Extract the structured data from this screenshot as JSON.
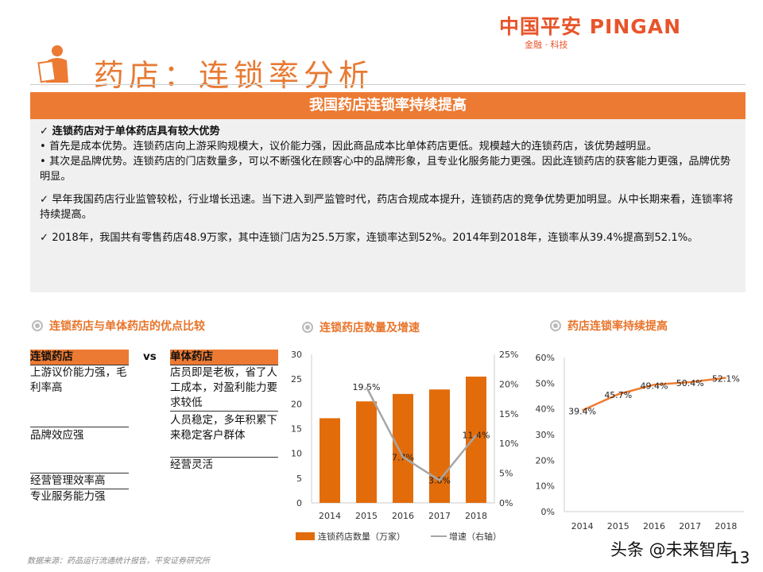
{
  "header": {
    "logo": "中国平安 PINGAN",
    "logo_sub": "金融 · 科技",
    "title": "药店：连锁率分析",
    "banner": "我国药店连锁率持续提高",
    "accent": "#ec7a33"
  },
  "text": {
    "p1_head": "✓ 连锁药店对于单体药店具有较大优势",
    "p1_b1": "• 首先是成本优势。连锁药店向上游采购规模大，议价能力强，因此商品成本比单体药店更低。规模越大的连锁药店，该优势越明显。",
    "p1_b2": "• 其次是品牌优势。连锁药店的门店数量多，可以不断强化在顾客心中的品牌形象，且专业化服务能力更强。因此连锁药店的获客能力更强，品牌优势明显。",
    "p2": "✓ 早年我国药店行业监管较松，行业增长迅速。当下进入到严监管时代，药店合规成本提升，连锁药店的竞争优势更加明显。从中长期来看，连锁率将持续提高。",
    "p3": "✓ 2018年，我国共有零售药店48.9万家，其中连锁门店为25.5万家，连锁率达到52%。2014年到2018年，连锁率从39.4%提高到52.1%。"
  },
  "compare": {
    "title": "连锁药店与单体药店的优点比较",
    "left_head": "连锁药店",
    "vs": "vs",
    "right_head": "单体药店",
    "left": [
      "上游议价能力强，毛利率高",
      "品牌效应强",
      "经营管理效率高",
      "专业服务能力强"
    ],
    "right": [
      "店员即是老板，省了人工成本，对盈利能力要求较低",
      "人员稳定，多年积累下来稳定客户群体",
      "经营灵活"
    ]
  },
  "chart_data": [
    {
      "type": "bar",
      "title": "连锁药店数量及增速",
      "categories": [
        "2014",
        "2015",
        "2016",
        "2017",
        "2018"
      ],
      "series": [
        {
          "name": "连锁药店数量（万家）",
          "type": "bar",
          "values": [
            17.1,
            20.5,
            22.0,
            22.9,
            25.5
          ],
          "color": "#e36c0a"
        },
        {
          "name": "增速（右轴）",
          "type": "line",
          "values": [
            null,
            19.5,
            7.7,
            3.8,
            11.4
          ],
          "labels": [
            "",
            "19.5%",
            "7.7%",
            "3.8%",
            "11.4%"
          ],
          "color": "#a6a6a6"
        }
      ],
      "ylim": [
        0,
        30
      ],
      "yticks": [
        "0",
        "5",
        "10",
        "15",
        "20",
        "25",
        "30"
      ],
      "y2lim": [
        0,
        25
      ],
      "y2ticks": [
        "0%",
        "5%",
        "10%",
        "15%",
        "20%",
        "25%"
      ]
    },
    {
      "type": "line",
      "title": "药店连锁率持续提高",
      "categories": [
        "2014",
        "2015",
        "2016",
        "2017",
        "2018"
      ],
      "values": [
        39.4,
        45.7,
        49.4,
        50.4,
        52.1
      ],
      "labels": [
        "39.4%",
        "45.7%",
        "49.4%",
        "50.4%",
        "52.1%"
      ],
      "color": "#ed7d31",
      "ylim": [
        0,
        60
      ],
      "yticks": [
        "0%",
        "10%",
        "20%",
        "30%",
        "40%",
        "50%",
        "60%"
      ]
    }
  ],
  "footer": {
    "source": "数据来源：药品运行流通统计报告，平安证券研究所",
    "watermark": "头条 @未来智库",
    "page": "13"
  }
}
